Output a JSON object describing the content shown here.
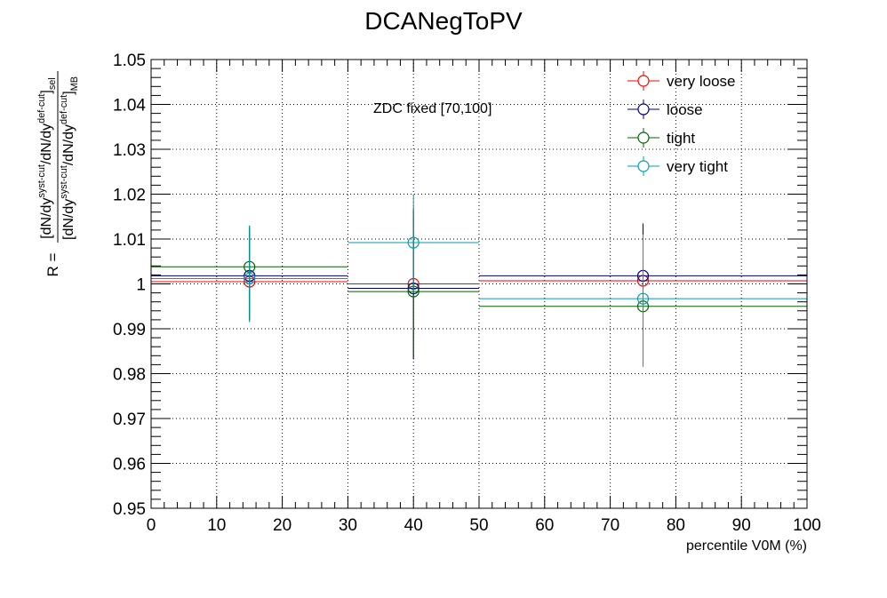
{
  "chart_data": {
    "type": "scatter",
    "title": "DCANegToPV",
    "xlabel": "percentile V0M (%)",
    "ylabel": {
      "prefix": "R =",
      "numerator": "[dN/dy^{syst-cut}/dN/dy^{def-cut}]_{sel}",
      "denominator": "[dN/dy^{syst-cut}/dN/dy^{def-cut}]_{MB}"
    },
    "xlim": [
      0,
      100
    ],
    "ylim": [
      0.95,
      1.05
    ],
    "x_ticks": [
      "0",
      "10",
      "20",
      "30",
      "40",
      "50",
      "60",
      "70",
      "80",
      "90",
      "100"
    ],
    "y_ticks": [
      "0.95",
      "0.96",
      "0.97",
      "0.98",
      "0.99",
      "1",
      "1.01",
      "1.02",
      "1.03",
      "1.04",
      "1.05"
    ],
    "grid": true,
    "legend_position": "top-right",
    "annotation": "ZDC fixed [70,100]",
    "series": [
      {
        "name": "very loose",
        "color": "#ff0000",
        "points": [
          {
            "x": 15,
            "xlo": 0,
            "xhi": 30,
            "y": 1.0005,
            "ylo": 0.9915,
            "yhi": 1.0125
          },
          {
            "x": 40,
            "xlo": 30,
            "xhi": 50,
            "y": 1.0,
            "ylo": 0.9835,
            "yhi": 1.017
          },
          {
            "x": 75,
            "xlo": 50,
            "xhi": 100,
            "y": 1.0007,
            "ylo": 0.985,
            "yhi": 1.0125
          }
        ]
      },
      {
        "name": "loose",
        "color": "#00007f",
        "points": [
          {
            "x": 15,
            "xlo": 0,
            "xhi": 30,
            "y": 1.0018,
            "ylo": 0.992,
            "yhi": 1.0125
          },
          {
            "x": 40,
            "xlo": 30,
            "xhi": 50,
            "y": 0.999,
            "ylo": 0.9832,
            "yhi": 1.0165
          },
          {
            "x": 75,
            "xlo": 50,
            "xhi": 100,
            "y": 1.0018,
            "ylo": 0.986,
            "yhi": 1.0135
          }
        ]
      },
      {
        "name": "tight",
        "color": "#006400",
        "points": [
          {
            "x": 15,
            "xlo": 0,
            "xhi": 30,
            "y": 1.0038,
            "ylo": 0.992,
            "yhi": 1.013
          },
          {
            "x": 40,
            "xlo": 30,
            "xhi": 50,
            "y": 0.9983,
            "ylo": 0.984,
            "yhi": 1.015
          },
          {
            "x": 75,
            "xlo": 50,
            "xhi": 100,
            "y": 0.995,
            "ylo": 0.982,
            "yhi": 1.011
          }
        ]
      },
      {
        "name": "very tight",
        "color": "#009fb0",
        "points": [
          {
            "x": 15,
            "xlo": 0,
            "xhi": 30,
            "y": 1.0012,
            "ylo": 0.9915,
            "yhi": 1.013
          },
          {
            "x": 40,
            "xlo": 30,
            "xhi": 50,
            "y": 1.0092,
            "ylo": 0.998,
            "yhi": 1.02
          },
          {
            "x": 75,
            "xlo": 50,
            "xhi": 100,
            "y": 0.9967,
            "ylo": 0.9815,
            "yhi": 1.011
          }
        ]
      }
    ]
  }
}
